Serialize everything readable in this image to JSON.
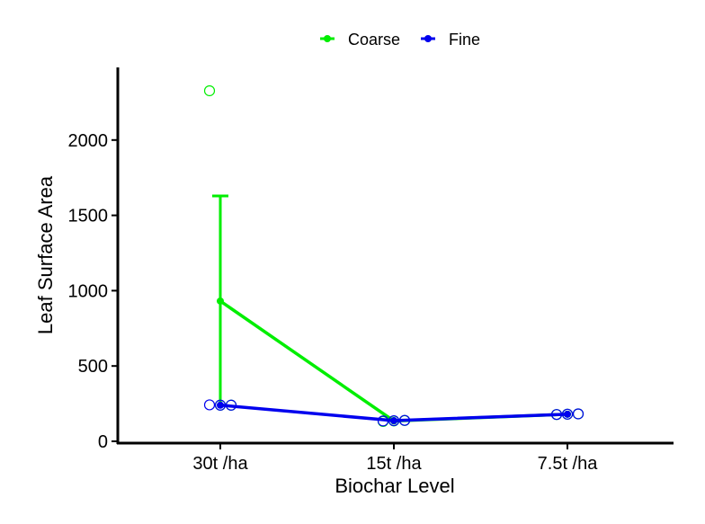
{
  "chart_data": {
    "type": "line",
    "title": "",
    "xlabel": "Biochar Level",
    "ylabel": "Leaf Surface Area",
    "categories": [
      "30t /ha",
      "15t /ha",
      "7.5t /ha"
    ],
    "ylim": [
      0,
      2500
    ],
    "yticks": [
      0,
      500,
      1000,
      1500,
      2000
    ],
    "grid": false,
    "legend_position": "top",
    "series": [
      {
        "name": "Coarse",
        "color": "#00ee00",
        "means": [
          931,
          135,
          180
        ],
        "error_low": [
          233,
          135,
          180
        ],
        "error_high": [
          1629,
          135,
          180
        ],
        "points": [
          [
            2327,
            240,
            240
          ],
          [
            132,
            135,
            138
          ],
          [
            178,
            180,
            182
          ]
        ]
      },
      {
        "name": "Fine",
        "color": "#0000ee",
        "means": [
          240,
          137,
          180
        ],
        "error_low": [
          240,
          137,
          180
        ],
        "error_high": [
          240,
          137,
          180
        ],
        "points": [
          [
            242,
            240,
            240
          ],
          [
            135,
            137,
            139
          ],
          [
            178,
            180,
            182
          ]
        ]
      }
    ]
  }
}
